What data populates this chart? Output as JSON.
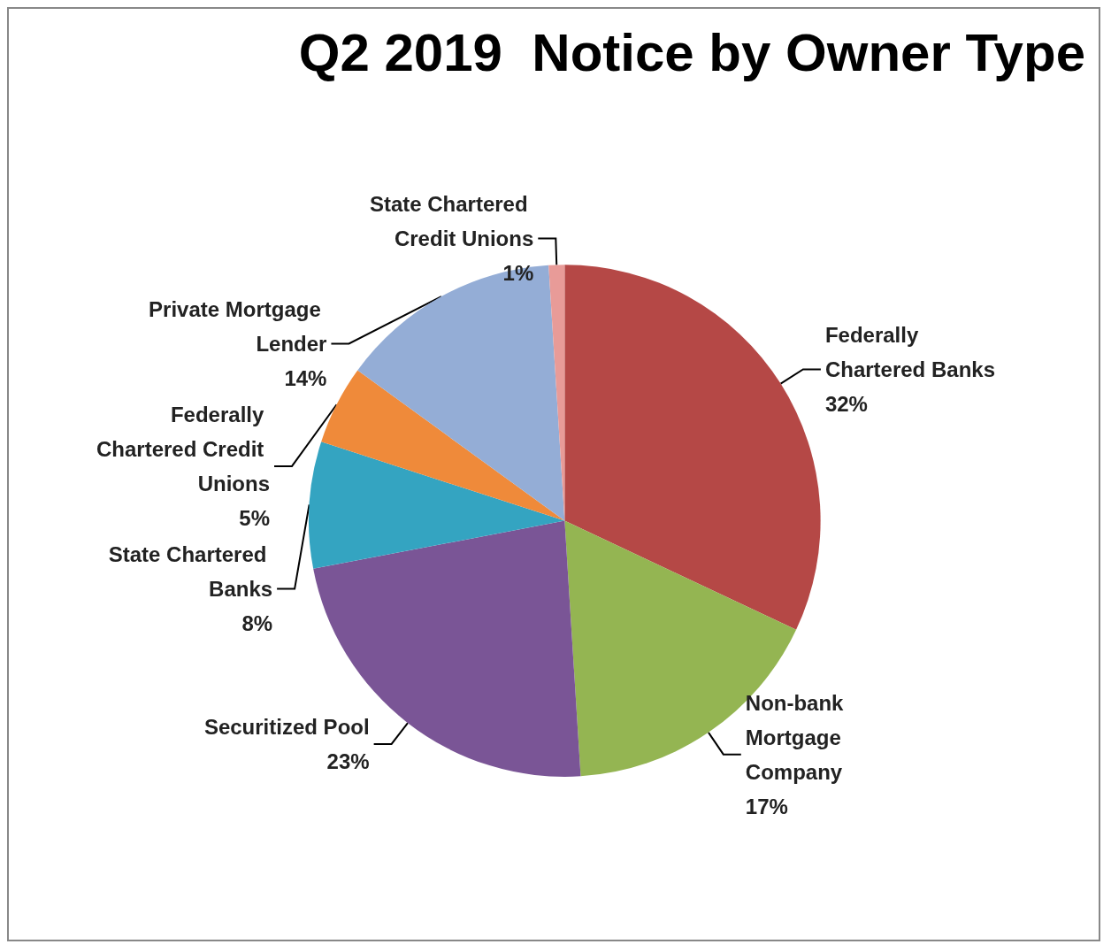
{
  "chart_data": {
    "type": "pie",
    "title": "Q2 2019  Notice by Owner Type",
    "categories": [
      "Federally Chartered Banks",
      "Non-bank Mortgage Company",
      "Securitized Pool",
      "State Chartered Banks",
      "Federally Chartered Credit Unions",
      "Private Mortgage Lender",
      "State Chartered Credit Unions"
    ],
    "values": [
      32,
      17,
      23,
      8,
      5,
      14,
      1
    ],
    "colors": [
      "#b54846",
      "#94b552",
      "#7a5596",
      "#34a4c1",
      "#ef8a3a",
      "#94add6",
      "#e89b98"
    ],
    "value_labels": [
      "32%",
      "17%",
      "23%",
      "8%",
      "5%",
      "14%",
      "1%"
    ],
    "legend": false
  }
}
